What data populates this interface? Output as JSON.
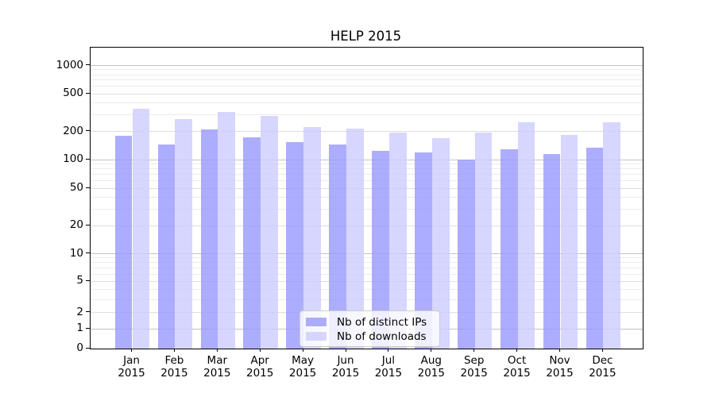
{
  "chart_data": {
    "type": "bar",
    "title": "HELP 2015",
    "categories": [
      "Jan",
      "Feb",
      "Mar",
      "Apr",
      "May",
      "Jun",
      "Jul",
      "Aug",
      "Sep",
      "Oct",
      "Nov",
      "Dec"
    ],
    "category_year": "2015",
    "series": [
      {
        "name": "Nb of distinct IPs",
        "color": "#9999ff",
        "alpha": 0.8,
        "values": [
          180,
          145,
          210,
          175,
          155,
          145,
          125,
          120,
          100,
          130,
          115,
          135
        ]
      },
      {
        "name": "Nb of downloads",
        "color": "#ccccff",
        "alpha": 0.8,
        "values": [
          350,
          270,
          320,
          295,
          225,
          215,
          195,
          170,
          195,
          250,
          185,
          250
        ]
      }
    ],
    "yscale": "pseudo-log (asinh, linthresh 2)",
    "yticks": [
      0,
      1,
      2,
      5,
      10,
      20,
      50,
      100,
      200,
      500,
      1000
    ],
    "minor_gridlines": [
      3,
      4,
      6,
      7,
      8,
      9,
      30,
      40,
      60,
      70,
      80,
      90,
      300,
      400,
      600,
      700,
      800,
      900
    ],
    "ylim": [
      0,
      1500
    ],
    "xlabel": "",
    "ylabel": "",
    "grid": true,
    "legend_position": "lower center"
  },
  "colors": {
    "background": "#ffffff",
    "bar_distinct_ips": "#9999ff",
    "bar_downloads": "#ccccff",
    "grid_major": "#c3c3c3",
    "grid_mid": "#dedede",
    "grid_minor": "#ebebeb",
    "axis": "#000000",
    "legend_border": "#cccccc",
    "text": "#000000"
  }
}
